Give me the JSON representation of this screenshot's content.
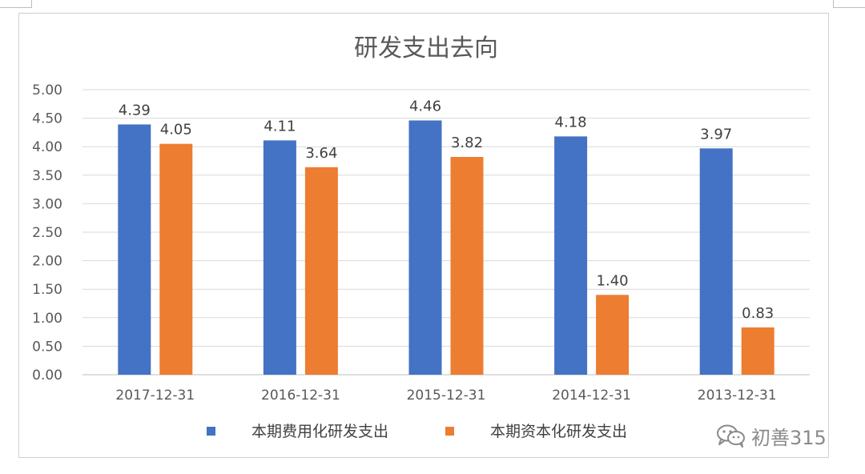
{
  "chart_data": {
    "type": "bar",
    "title": "研发支出去向",
    "categories": [
      "2017-12-31",
      "2016-12-31",
      "2015-12-31",
      "2014-12-31",
      "2013-12-31"
    ],
    "series": [
      {
        "name": "本期费用化研发支出",
        "color": "#4472C4",
        "values": [
          4.39,
          4.11,
          4.46,
          4.18,
          3.97
        ]
      },
      {
        "name": "本期资本化研发支出",
        "color": "#ED7D31",
        "values": [
          4.05,
          3.64,
          3.82,
          1.4,
          0.83
        ]
      }
    ],
    "ylim": [
      0,
      5
    ],
    "ytick_step": 0.5,
    "ytick_labels": [
      "0.00",
      "0.50",
      "1.00",
      "1.50",
      "2.00",
      "2.50",
      "3.00",
      "3.50",
      "4.00",
      "4.50",
      "5.00"
    ],
    "data_labels": true,
    "grid": true,
    "legend_position": "bottom"
  },
  "watermark": {
    "text": "初善315",
    "icon": "wechat-icon"
  }
}
